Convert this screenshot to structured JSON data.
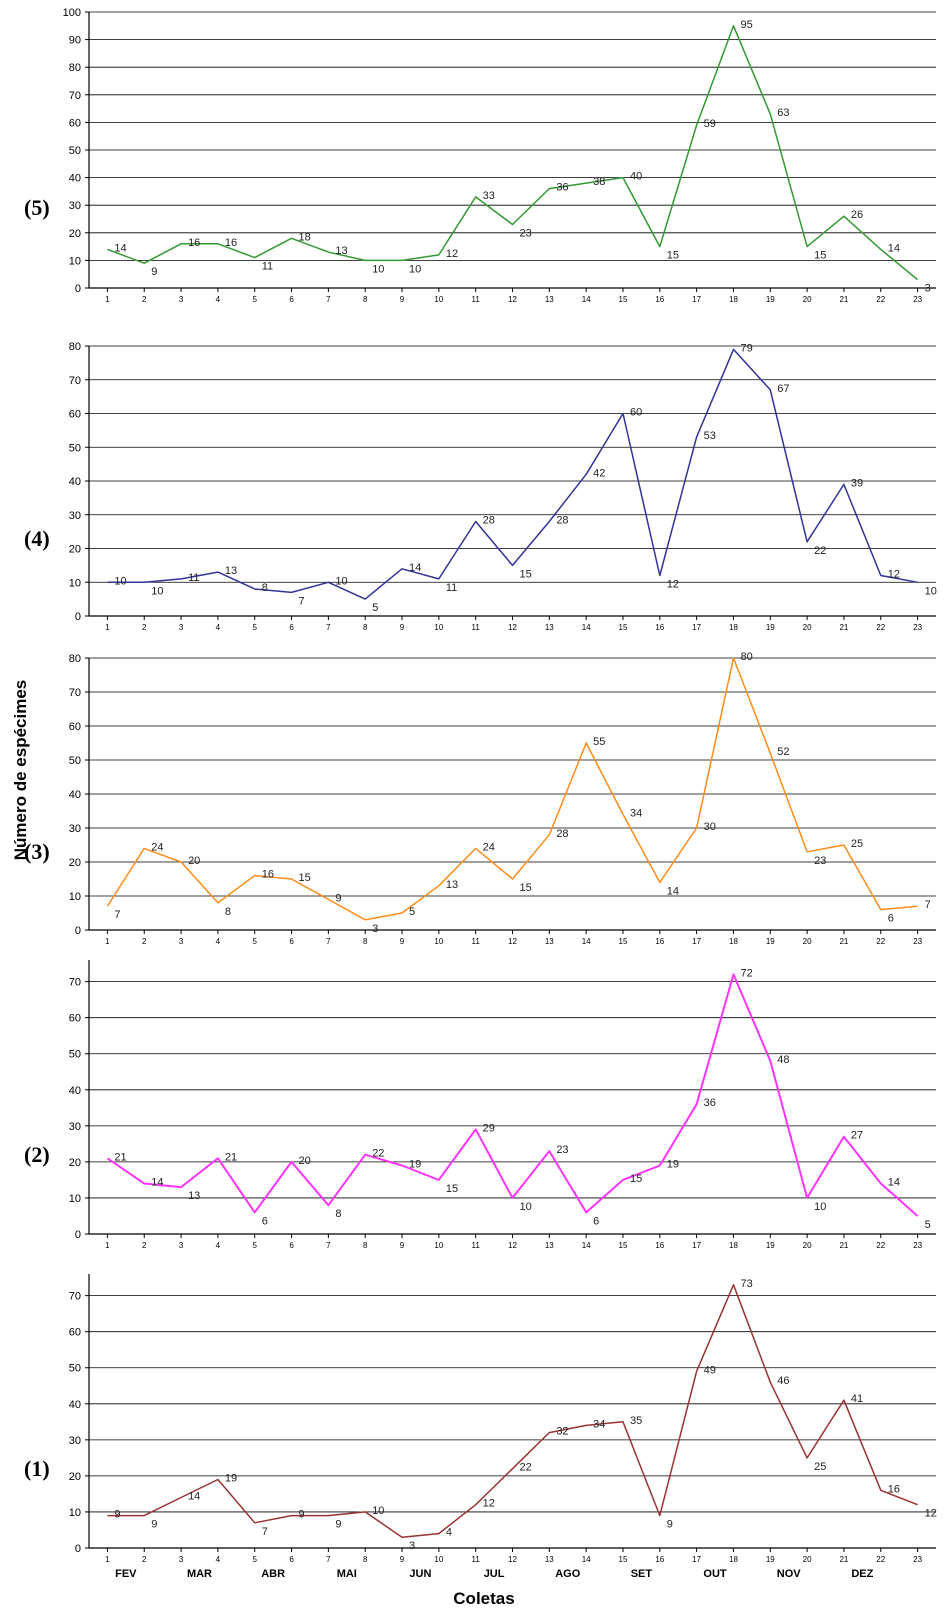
{
  "chart_data": [
    {
      "type": "line",
      "panel_label": "(5)",
      "color": "#339933",
      "ylim": [
        0,
        100
      ],
      "yticks": [
        0,
        10,
        20,
        30,
        40,
        50,
        60,
        70,
        80,
        90,
        100
      ],
      "x": [
        1,
        2,
        3,
        4,
        5,
        6,
        7,
        8,
        9,
        10,
        11,
        12,
        13,
        14,
        15,
        16,
        17,
        18,
        19,
        20,
        21,
        22,
        23
      ],
      "values": [
        14,
        9,
        16,
        16,
        11,
        18,
        13,
        10,
        10,
        12,
        33,
        23,
        36,
        38,
        40,
        15,
        59,
        95,
        63,
        15,
        26,
        14,
        3
      ],
      "grid": true
    },
    {
      "type": "line",
      "panel_label": "(4)",
      "color": "#333399",
      "ylim": [
        0,
        80
      ],
      "yticks": [
        0,
        10,
        20,
        30,
        40,
        50,
        60,
        70,
        80
      ],
      "x": [
        1,
        2,
        3,
        4,
        5,
        6,
        7,
        8,
        9,
        10,
        11,
        12,
        13,
        14,
        15,
        16,
        17,
        18,
        19,
        20,
        21,
        22,
        23
      ],
      "values": [
        10,
        10,
        11,
        13,
        8,
        7,
        10,
        5,
        14,
        11,
        28,
        15,
        28,
        42,
        60,
        12,
        53,
        79,
        67,
        22,
        39,
        12,
        10
      ],
      "grid": true
    },
    {
      "type": "line",
      "panel_label": "(3)",
      "color": "#ff8c1a",
      "ylim": [
        0,
        80
      ],
      "yticks": [
        0,
        10,
        20,
        30,
        40,
        50,
        60,
        70,
        80
      ],
      "x": [
        1,
        2,
        3,
        4,
        5,
        6,
        7,
        8,
        9,
        10,
        11,
        12,
        13,
        14,
        15,
        16,
        17,
        18,
        19,
        20,
        21,
        22,
        23
      ],
      "values": [
        7,
        24,
        20,
        8,
        16,
        15,
        9,
        3,
        5,
        13,
        24,
        15,
        28,
        55,
        34,
        14,
        30,
        80,
        52,
        23,
        25,
        6,
        7
      ],
      "grid": true
    },
    {
      "type": "line",
      "panel_label": "(2)",
      "color": "#ff33ff",
      "ylim": [
        0,
        76
      ],
      "yticks": [
        0,
        10,
        20,
        30,
        40,
        50,
        60,
        70
      ],
      "x": [
        1,
        2,
        3,
        4,
        5,
        6,
        7,
        8,
        9,
        10,
        11,
        12,
        13,
        14,
        15,
        16,
        17,
        18,
        19,
        20,
        21,
        22,
        23
      ],
      "values": [
        21,
        14,
        13,
        21,
        6,
        20,
        8,
        22,
        19,
        15,
        29,
        10,
        23,
        6,
        15,
        19,
        36,
        72,
        48,
        10,
        27,
        14,
        5
      ],
      "grid": true
    },
    {
      "type": "line",
      "panel_label": "(1)",
      "color": "#993333",
      "ylim": [
        0,
        76
      ],
      "yticks": [
        0,
        10,
        20,
        30,
        40,
        50,
        60,
        70
      ],
      "x": [
        1,
        2,
        3,
        4,
        5,
        6,
        7,
        8,
        9,
        10,
        11,
        12,
        13,
        14,
        15,
        16,
        17,
        18,
        19,
        20,
        21,
        22,
        23
      ],
      "values": [
        9,
        9,
        14,
        19,
        7,
        9,
        9,
        10,
        3,
        4,
        12,
        22,
        32,
        34,
        35,
        9,
        49,
        73,
        46,
        25,
        41,
        16,
        12
      ],
      "grid": true
    }
  ],
  "ylabel": "Número de espécimes",
  "xlabel": "Coletas",
  "months": [
    {
      "label": "FEV",
      "x": 1.5
    },
    {
      "label": "MAR",
      "x": 3.5
    },
    {
      "label": "ABR",
      "x": 5.5
    },
    {
      "label": "MAI",
      "x": 7.5
    },
    {
      "label": "JUN",
      "x": 9.5
    },
    {
      "label": "JUL",
      "x": 11.5
    },
    {
      "label": "AGO",
      "x": 13.5
    },
    {
      "label": "SET",
      "x": 15.5
    },
    {
      "label": "OUT",
      "x": 17.5
    },
    {
      "label": "NOV",
      "x": 19.5
    },
    {
      "label": "DEZ",
      "x": 21.5
    }
  ]
}
